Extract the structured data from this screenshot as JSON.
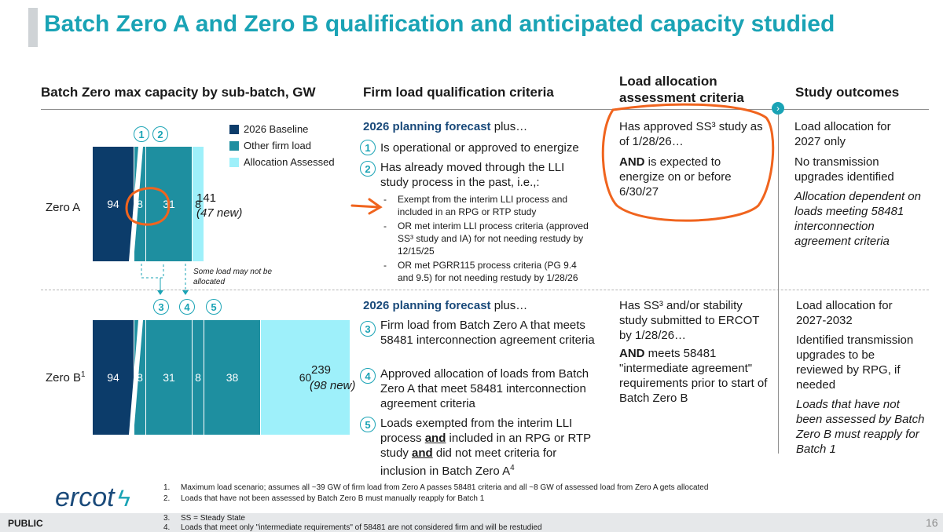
{
  "title": "Batch Zero A and Zero B qualification and anticipated capacity studied",
  "headers": {
    "col1": "Batch Zero max capacity by sub-batch, GW",
    "col2": "Firm load qualification criteria",
    "col3_line1": "Load allocation",
    "col3_line2": "assessment criteria",
    "col4": "Study outcomes"
  },
  "legend": [
    {
      "label": "2026 Baseline",
      "color": "#0c3c6a"
    },
    {
      "label": "Other firm load",
      "color": "#1e8fa0"
    },
    {
      "label": "Allocation Assessed",
      "color": "#9ef0fa"
    }
  ],
  "chart_data": [
    {
      "type": "bar",
      "row_label": "Zero A",
      "segments": [
        {
          "label": "94",
          "value": 94,
          "series": "2026 Baseline"
        },
        {
          "label": "8",
          "value": 8,
          "series": "Other firm load"
        },
        {
          "label": "31",
          "value": 31,
          "series": "Other firm load"
        },
        {
          "label": "8",
          "value": 8,
          "series": "Allocation Assessed"
        }
      ],
      "markers": [
        "1",
        "2"
      ],
      "total": "141",
      "new": "(47 new)"
    },
    {
      "type": "bar",
      "row_label": "Zero B",
      "row_label_sup": "1",
      "segments": [
        {
          "label": "94",
          "value": 94,
          "series": "2026 Baseline"
        },
        {
          "label": "8",
          "value": 8,
          "series": "Other firm load"
        },
        {
          "label": "31",
          "value": 31,
          "series": "Other firm load"
        },
        {
          "label": "8",
          "value": 8,
          "series": "Other firm load"
        },
        {
          "label": "38",
          "value": 38,
          "series": "Other firm load"
        },
        {
          "label": "60",
          "value": 60,
          "series": "Allocation Assessed"
        }
      ],
      "markers": [
        "3",
        "4",
        "5"
      ],
      "total": "239",
      "new": "(98 new)"
    }
  ],
  "note_some_load": "Some load may not be allocated",
  "row_a": {
    "criteria_lead_bold": "2026 planning forecast",
    "criteria_lead_rest": " plus…",
    "item1_num": "1",
    "item1": "Is operational or approved to energize",
    "item2_num": "2",
    "item2": "Has already moved through the LLI study process in the past, i.e.,:",
    "sub1": "Exempt from the interim LLI process and included in an RPG or RTP study",
    "sub2": "OR met interim LLI process criteria (approved SS³ study and IA) for not needing restudy by 12/15/25",
    "sub3": "OR met PGRR115 process criteria (PG 9.4 and 9.5) for not needing restudy by 1/28/26",
    "alloc1": "Has approved SS³ study as of 1/28/26…",
    "alloc2_bold": "AND",
    "alloc2_rest": " is expected to energize on or before 6/30/27",
    "out1": "Load allocation for 2027 only",
    "out2": "No transmission upgrades identified",
    "out3": "Allocation dependent on loads meeting 58481 interconnection agreement criteria"
  },
  "row_b": {
    "criteria_lead_bold": "2026 planning forecast",
    "criteria_lead_rest": " plus…",
    "item3_num": "3",
    "item3": "Firm load from Batch Zero A that meets 58481 interconnection agreement criteria",
    "item4_num": "4",
    "item4": "Approved allocation of loads from Batch Zero A that meet 58481 interconnection agreement criteria",
    "item5_num": "5",
    "item5_a": "Loads exempted from the interim LLI process ",
    "item5_and1": "and",
    "item5_b": " included in an RPG or RTP study ",
    "item5_and2": "and",
    "item5_c": " did not meet criteria for inclusion in Batch Zero A",
    "item5_sup": "4",
    "alloc1": "Has SS³ and/or stability study submitted to ERCOT by 1/28/26…",
    "alloc2_bold": "AND",
    "alloc2_rest": " meets 58481 \"intermediate agreement\" requirements prior to start of Batch Zero B",
    "out1": "Load allocation for 2027-2032",
    "out2": "Identified transmission upgrades to be reviewed by RPG, if needed",
    "out3": "Loads that have not been assessed by Batch Zero B must reapply for Batch 1"
  },
  "footnotes": [
    {
      "num": "1.",
      "text": "Maximum load scenario; assumes all ~39 GW of firm load from Zero A passes 58481 criteria and all ~8 GW of assessed load from Zero A gets allocated"
    },
    {
      "num": "2.",
      "text": "Loads that have not been assessed by Batch Zero B must manually reapply for Batch 1"
    },
    {
      "num": "3.",
      "text": "SS = Steady State"
    },
    {
      "num": "4.",
      "text": "Loads that meet only \"intermediate requirements\" of 58481 are not considered firm and will be restudied"
    }
  ],
  "logo": "ercot",
  "classification": "PUBLIC",
  "page_number": "16",
  "annotation_color": "#f0641e",
  "accent_color": "#1aa3b5"
}
